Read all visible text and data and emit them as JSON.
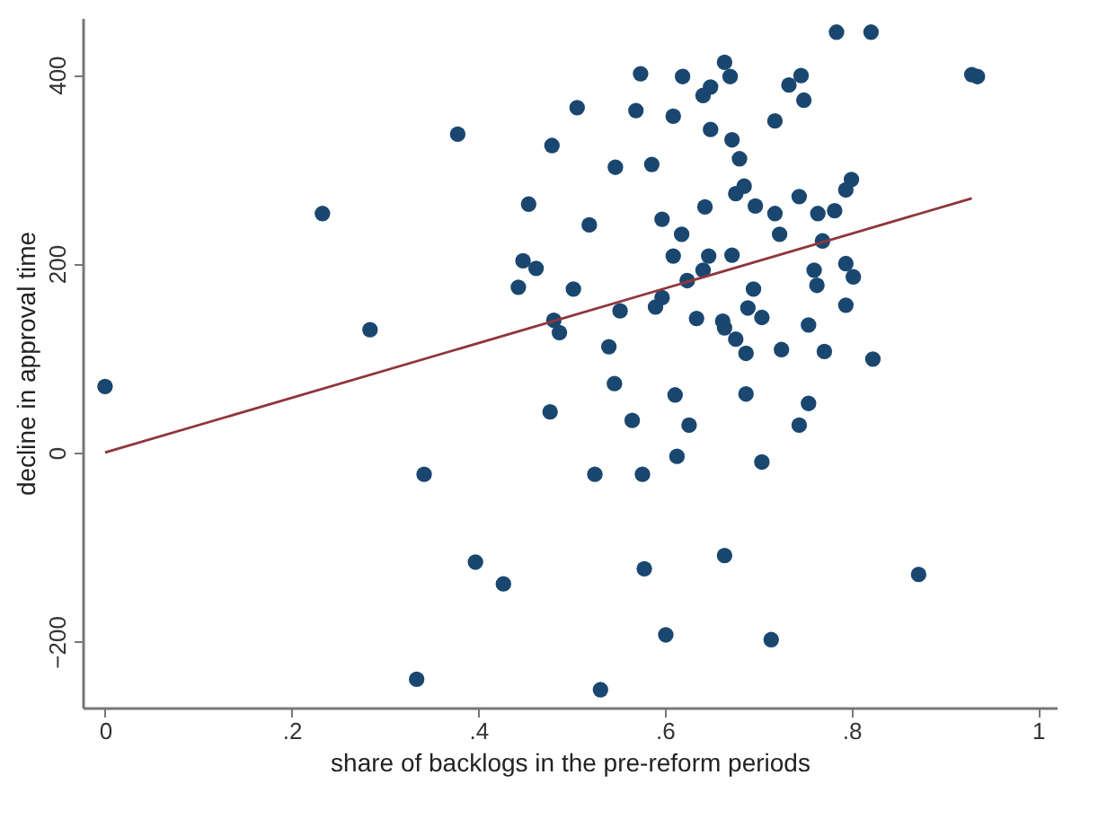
{
  "chart_data": {
    "type": "scatter",
    "xlabel": "share of backlogs in the pre-reform periods",
    "ylabel": "decline in approval time",
    "xlim": [
      -0.024,
      1.02
    ],
    "ylim": [
      -270,
      460
    ],
    "xticks": [
      {
        "value": 0,
        "label": "0"
      },
      {
        "value": 0.2,
        "label": ".2"
      },
      {
        "value": 0.4,
        "label": ".4"
      },
      {
        "value": 0.6,
        "label": ".6"
      },
      {
        "value": 0.8,
        "label": ".8"
      },
      {
        "value": 1,
        "label": "1"
      }
    ],
    "yticks": [
      -200,
      0,
      200,
      400
    ],
    "grid": false,
    "marker": "circle",
    "series": [
      {
        "type": "scatter",
        "color": "#1a476f",
        "x": [
          0.378,
          0.479,
          0.454,
          0.448,
          0.462,
          0.443,
          0.481,
          0.487,
          0.284,
          0.233,
          0.784,
          0.821,
          0.929,
          0.935,
          0.574,
          0.619,
          0.664,
          0.67,
          0.649,
          0.641,
          0.506,
          0.569,
          0.609,
          0.733,
          0.746,
          0.749,
          0.718,
          0.649,
          0.672,
          0.68,
          0.547,
          0.586,
          0.519,
          0.597,
          0.643,
          0.676,
          0.685,
          0.697,
          0.718,
          0.744,
          0.764,
          0.782,
          0.794,
          0.8,
          0.618,
          0.723,
          0.769,
          0.609,
          0.647,
          0.672,
          0.641,
          0.624,
          0.76,
          0.794,
          0.802,
          0.763,
          0.502,
          0.695,
          0.597,
          0.59,
          0.552,
          0.689,
          0.704,
          0.794,
          0.634,
          0.662,
          0.664,
          0.754,
          0.676,
          0.54,
          0.687,
          0.725,
          0.771,
          0.823,
          0.546,
          0.611,
          0.687,
          0.477,
          0.565,
          0.626,
          0.754,
          0.744,
          0.613,
          0.704,
          0.525,
          0.576,
          0.578,
          0.664,
          0.872,
          0.601,
          0.714,
          0.531,
          0,
          0.342,
          0.397,
          0.427,
          0.334
        ],
        "values": [
          337,
          325,
          263,
          203,
          195,
          175,
          140,
          127,
          130,
          253,
          445,
          445,
          400,
          398,
          401,
          398,
          413,
          398,
          387,
          378,
          365,
          362,
          356,
          389,
          399,
          373,
          351,
          342,
          331,
          311,
          302,
          305,
          241,
          247,
          260,
          274,
          282,
          261,
          253,
          271,
          253,
          256,
          278,
          289,
          231,
          231,
          224,
          208,
          208,
          209,
          193,
          182,
          193,
          200,
          186,
          177,
          173,
          173,
          164,
          154,
          150,
          153,
          143,
          156,
          142,
          139,
          132,
          135,
          120,
          112,
          105,
          109,
          107,
          99,
          73,
          61,
          62,
          43,
          34,
          29,
          52,
          29,
          -4,
          -10,
          -23,
          -23,
          -123,
          -109,
          -129,
          -193,
          -198,
          -251,
          70,
          -23,
          -116,
          -139,
          -240
        ]
      },
      {
        "type": "line",
        "color": "#90353b",
        "marker": "none",
        "line_style": "solid",
        "x": [
          0,
          0.929
        ],
        "values": [
          0,
          269
        ]
      }
    ]
  }
}
